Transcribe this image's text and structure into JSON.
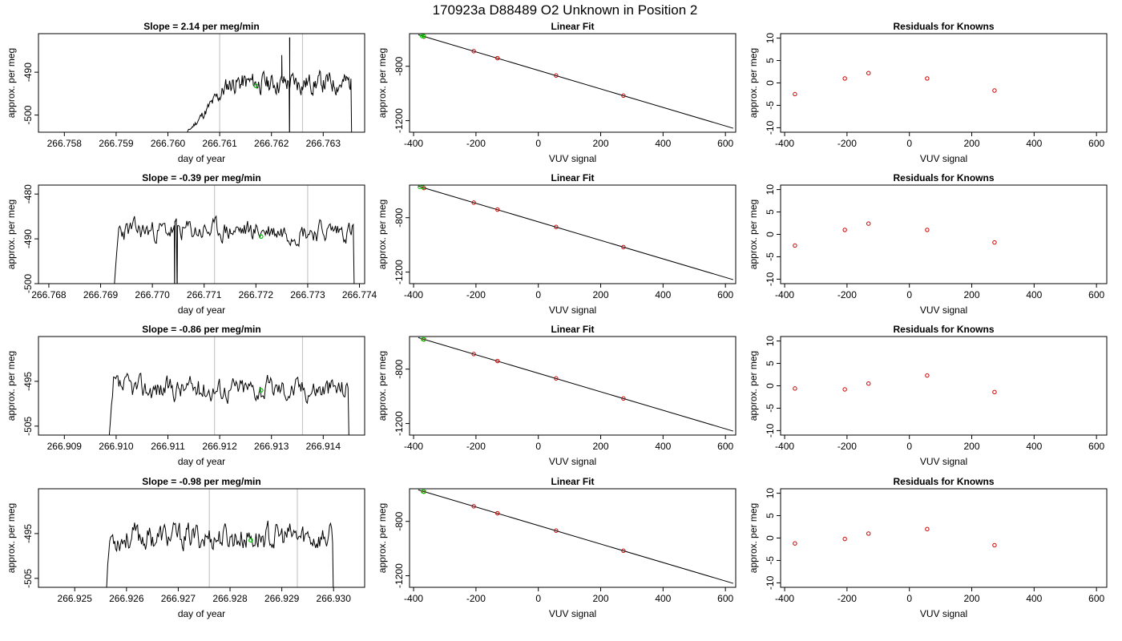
{
  "main_title": "170923a     D88489   O2 Unknown in Position  2",
  "colors": {
    "trace": "#000000",
    "marker_green": "#00cc00",
    "marker_red": "#cc0000",
    "vline": "#c8c8c8"
  },
  "chart_data": [
    {
      "type": "line",
      "row": 1,
      "col": 1,
      "title": "Slope =  2.14  per meg/min",
      "xlabel": "day of year",
      "ylabel": "approx. per meg",
      "xlim": [
        266.7575,
        266.7638
      ],
      "ylim": [
        -504,
        -481
      ],
      "xticks": [
        266.758,
        266.759,
        266.76,
        266.761,
        266.762,
        266.763
      ],
      "xtick_labels": [
        "266.758",
        "266.759",
        "266.760",
        "266.761",
        "266.762",
        "266.763"
      ],
      "yticks": [
        -490,
        -500
      ],
      "ytick_labels": [
        "-490",
        "-500"
      ],
      "vlines": [
        266.761,
        266.7626
      ],
      "marker": {
        "x": 266.7617,
        "y": -493.2
      },
      "trace": {
        "start": 266.76024,
        "end": 266.76355,
        "base": -492.5,
        "amp": 1.8,
        "rise_end": 266.7612,
        "ramp_from": -506,
        "spikes": [
          {
            "x": 266.76235,
            "y": -482
          },
          {
            "x": 266.76235,
            "y": -508
          },
          {
            "x": 266.7622,
            "y": -486
          }
        ],
        "seed": 11
      }
    },
    {
      "type": "scatter",
      "row": 1,
      "col": 2,
      "title": "Linear Fit",
      "xlabel": "VUV signal",
      "ylabel": "approx. per meg",
      "xlim": [
        -413,
        633
      ],
      "ylim": [
        -1285,
        -560
      ],
      "xticks": [
        -400,
        -200,
        0,
        200,
        400,
        600
      ],
      "xtick_labels": [
        "-400",
        "-200",
        "0",
        "200",
        "400",
        "600"
      ],
      "yticks": [
        -800,
        -1200
      ],
      "ytick_labels": [
        "-800",
        "-1200"
      ],
      "fit_line": {
        "x": [
          -385,
          625
        ],
        "y": [
          -568,
          -1256
        ]
      },
      "known_points": [
        {
          "x": -367,
          "y": -582
        },
        {
          "x": -207,
          "y": -689
        },
        {
          "x": -131,
          "y": -740
        },
        {
          "x": 57,
          "y": -868
        },
        {
          "x": 273,
          "y": -1016
        }
      ],
      "unknown_points": [
        {
          "x": -373,
          "y": -578
        },
        {
          "x": -367,
          "y": -579
        }
      ]
    },
    {
      "type": "scatter",
      "row": 1,
      "col": 3,
      "title": "Residuals for Knowns",
      "xlabel": "VUV signal",
      "ylabel": "approx. per meg",
      "xlim": [
        -413,
        633
      ],
      "ylim": [
        -11,
        11
      ],
      "xticks": [
        -400,
        -200,
        0,
        200,
        400,
        600
      ],
      "xtick_labels": [
        "-400",
        "-200",
        "0",
        "200",
        "400",
        "600"
      ],
      "yticks": [
        10,
        5,
        0,
        -5,
        -10
      ],
      "ytick_labels": [
        "10",
        "5",
        "0",
        "-5",
        "-10"
      ],
      "points": [
        {
          "x": -367,
          "y": -2.5
        },
        {
          "x": -207,
          "y": 1.0
        },
        {
          "x": -131,
          "y": 2.2
        },
        {
          "x": 57,
          "y": 1.0
        },
        {
          "x": 273,
          "y": -1.7
        }
      ]
    },
    {
      "type": "line",
      "row": 2,
      "col": 1,
      "title": "Slope =  -0.39  per meg/min",
      "xlabel": "day of year",
      "ylabel": "approx. per meg",
      "xlim": [
        266.7678,
        266.7741
      ],
      "ylim": [
        -500,
        -478
      ],
      "xticks": [
        266.768,
        266.769,
        266.77,
        266.771,
        266.772,
        266.773,
        266.774
      ],
      "xtick_labels": [
        "266.768",
        "266.769",
        "266.770",
        "266.771",
        "266.772",
        "266.773",
        "266.774"
      ],
      "yticks": [
        -480,
        -490,
        -500
      ],
      "ytick_labels": [
        "-480",
        "-490",
        "-500"
      ],
      "vlines": [
        266.7712,
        266.773
      ],
      "marker": {
        "x": 266.7721,
        "y": -489.5
      },
      "trace": {
        "start": 266.76925,
        "end": 266.7739,
        "base": -488.2,
        "amp": 1.8,
        "rise_end": 266.76935,
        "ramp_from": -503,
        "spikes": [
          {
            "x": 266.77043,
            "y": -503
          },
          {
            "x": 266.77048,
            "y": -503
          }
        ],
        "seed": 23
      }
    },
    {
      "type": "scatter",
      "row": 2,
      "col": 2,
      "title": "Linear Fit",
      "xlabel": "VUV signal",
      "ylabel": "approx. per meg",
      "xlim": [
        -413,
        633
      ],
      "ylim": [
        -1285,
        -560
      ],
      "xticks": [
        -400,
        -200,
        0,
        200,
        400,
        600
      ],
      "xtick_labels": [
        "-400",
        "-200",
        "0",
        "200",
        "400",
        "600"
      ],
      "yticks": [
        -800,
        -1200
      ],
      "ytick_labels": [
        "-800",
        "-1200"
      ],
      "fit_line": {
        "x": [
          -385,
          625
        ],
        "y": [
          -568,
          -1256
        ]
      },
      "known_points": [
        {
          "x": -367,
          "y": -582
        },
        {
          "x": -207,
          "y": -689
        },
        {
          "x": -131,
          "y": -740
        },
        {
          "x": 57,
          "y": -868
        },
        {
          "x": 273,
          "y": -1016
        }
      ],
      "unknown_points": [
        {
          "x": -380,
          "y": -574
        },
        {
          "x": -370,
          "y": -576
        }
      ]
    },
    {
      "type": "scatter",
      "row": 2,
      "col": 3,
      "title": "Residuals for Knowns",
      "xlabel": "VUV signal",
      "ylabel": "approx. per meg",
      "xlim": [
        -413,
        633
      ],
      "ylim": [
        -11,
        11
      ],
      "xticks": [
        -400,
        -200,
        0,
        200,
        400,
        600
      ],
      "xtick_labels": [
        "-400",
        "-200",
        "0",
        "200",
        "400",
        "600"
      ],
      "yticks": [
        10,
        5,
        0,
        -5,
        -10
      ],
      "ytick_labels": [
        "10",
        "5",
        "0",
        "-5",
        "-10"
      ],
      "points": [
        {
          "x": -367,
          "y": -2.5
        },
        {
          "x": -207,
          "y": 1.0
        },
        {
          "x": -131,
          "y": 2.4
        },
        {
          "x": 57,
          "y": 1.0
        },
        {
          "x": 273,
          "y": -1.8
        }
      ]
    },
    {
      "type": "line",
      "row": 3,
      "col": 1,
      "title": "Slope =  -0.86  per meg/min",
      "xlabel": "day of year",
      "ylabel": "approx. per meg",
      "xlim": [
        266.9085,
        266.9148
      ],
      "ylim": [
        -507,
        -485
      ],
      "xticks": [
        266.909,
        266.91,
        266.911,
        266.912,
        266.913,
        266.914
      ],
      "xtick_labels": [
        "266.909",
        "266.910",
        "266.911",
        "266.912",
        "266.913",
        "266.914"
      ],
      "yticks": [
        -495,
        -505
      ],
      "ytick_labels": [
        "-495",
        "-505"
      ],
      "vlines": [
        266.9119,
        266.9136
      ],
      "marker": {
        "x": 266.9128,
        "y": -497
      },
      "trace": {
        "start": 266.90985,
        "end": 266.9145,
        "base": -496.6,
        "amp": 2.0,
        "rise_end": 266.90995,
        "ramp_from": -510,
        "spikes": [],
        "seed": 37
      }
    },
    {
      "type": "scatter",
      "row": 3,
      "col": 2,
      "title": "Linear Fit",
      "xlabel": "VUV signal",
      "ylabel": "approx. per meg",
      "xlim": [
        -413,
        633
      ],
      "ylim": [
        -1285,
        -560
      ],
      "xticks": [
        -400,
        -200,
        0,
        200,
        400,
        600
      ],
      "xtick_labels": [
        "-400",
        "-200",
        "0",
        "200",
        "400",
        "600"
      ],
      "yticks": [
        -800,
        -1200
      ],
      "ytick_labels": [
        "-800",
        "-1200"
      ],
      "fit_line": {
        "x": [
          -385,
          625
        ],
        "y": [
          -568,
          -1256
        ]
      },
      "known_points": [
        {
          "x": -367,
          "y": -582
        },
        {
          "x": -207,
          "y": -689
        },
        {
          "x": -131,
          "y": -740
        },
        {
          "x": 57,
          "y": -868
        },
        {
          "x": 273,
          "y": -1016
        }
      ],
      "unknown_points": [
        {
          "x": -370,
          "y": -580
        },
        {
          "x": -366,
          "y": -581
        }
      ]
    },
    {
      "type": "scatter",
      "row": 3,
      "col": 3,
      "title": "Residuals for Knowns",
      "xlabel": "VUV signal",
      "ylabel": "approx. per meg",
      "xlim": [
        -413,
        633
      ],
      "ylim": [
        -11,
        11
      ],
      "xticks": [
        -400,
        -200,
        0,
        200,
        400,
        600
      ],
      "xtick_labels": [
        "-400",
        "-200",
        "0",
        "200",
        "400",
        "600"
      ],
      "yticks": [
        10,
        5,
        0,
        -5,
        -10
      ],
      "ytick_labels": [
        "10",
        "5",
        "0",
        "-5",
        "-10"
      ],
      "points": [
        {
          "x": -367,
          "y": -0.6
        },
        {
          "x": -207,
          "y": -0.8
        },
        {
          "x": -131,
          "y": 0.5
        },
        {
          "x": 57,
          "y": 2.3
        },
        {
          "x": 273,
          "y": -1.4
        }
      ]
    },
    {
      "type": "line",
      "row": 4,
      "col": 1,
      "title": "Slope =  -0.98  per meg/min",
      "xlabel": "day of year",
      "ylabel": "approx. per meg",
      "xlim": [
        266.9243,
        266.9306
      ],
      "ylim": [
        -507,
        -485
      ],
      "xticks": [
        266.925,
        266.926,
        266.927,
        266.928,
        266.929,
        266.93
      ],
      "xtick_labels": [
        "266.925",
        "266.926",
        "266.927",
        "266.928",
        "266.929",
        "266.930"
      ],
      "yticks": [
        -495,
        -505
      ],
      "ytick_labels": [
        "-495",
        "-505"
      ],
      "vlines": [
        266.9276,
        266.9293
      ],
      "marker": {
        "x": 266.9284,
        "y": -496.5
      },
      "trace": {
        "start": 266.92558,
        "end": 266.93,
        "base": -495.8,
        "amp": 2.2,
        "rise_end": 266.92568,
        "ramp_from": -512,
        "spikes": [],
        "seed": 53
      }
    },
    {
      "type": "scatter",
      "row": 4,
      "col": 2,
      "title": "Linear Fit",
      "xlabel": "VUV signal",
      "ylabel": "approx. per meg",
      "xlim": [
        -413,
        633
      ],
      "ylim": [
        -1285,
        -560
      ],
      "xticks": [
        -400,
        -200,
        0,
        200,
        400,
        600
      ],
      "xtick_labels": [
        "-400",
        "-200",
        "0",
        "200",
        "400",
        "600"
      ],
      "yticks": [
        -800,
        -1200
      ],
      "ytick_labels": [
        "-800",
        "-1200"
      ],
      "fit_line": {
        "x": [
          -385,
          625
        ],
        "y": [
          -568,
          -1256
        ]
      },
      "known_points": [
        {
          "x": -367,
          "y": -582
        },
        {
          "x": -207,
          "y": -689
        },
        {
          "x": -131,
          "y": -740
        },
        {
          "x": 57,
          "y": -868
        },
        {
          "x": 273,
          "y": -1016
        }
      ],
      "unknown_points": [
        {
          "x": -370,
          "y": -580
        },
        {
          "x": -366,
          "y": -581
        }
      ]
    },
    {
      "type": "scatter",
      "row": 4,
      "col": 3,
      "title": "Residuals for Knowns",
      "xlabel": "VUV signal",
      "ylabel": "approx. per meg",
      "xlim": [
        -413,
        633
      ],
      "ylim": [
        -11,
        11
      ],
      "xticks": [
        -400,
        -200,
        0,
        200,
        400,
        600
      ],
      "xtick_labels": [
        "-400",
        "-200",
        "0",
        "200",
        "400",
        "600"
      ],
      "yticks": [
        10,
        5,
        0,
        -5,
        -10
      ],
      "ytick_labels": [
        "10",
        "5",
        "0",
        "-5",
        "-10"
      ],
      "points": [
        {
          "x": -367,
          "y": -1.2
        },
        {
          "x": -207,
          "y": -0.2
        },
        {
          "x": -131,
          "y": 1.0
        },
        {
          "x": 57,
          "y": 2.0
        },
        {
          "x": 273,
          "y": -1.6
        }
      ]
    }
  ]
}
